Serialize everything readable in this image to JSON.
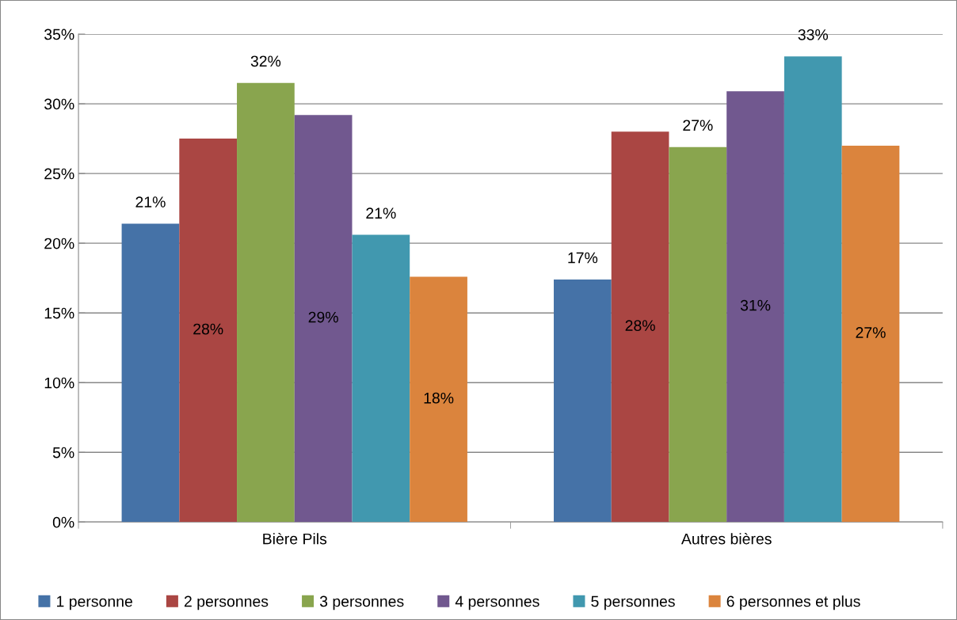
{
  "chart_data": {
    "type": "bar",
    "categories": [
      "Bière Pils",
      "Autres bières"
    ],
    "series": [
      {
        "name": "1 personne",
        "color": "#4572a7",
        "values": [
          21.4,
          17.4
        ],
        "value_labels": [
          "21%",
          "17%"
        ]
      },
      {
        "name": "2 personnes",
        "color": "#aa4643",
        "values": [
          27.5,
          28.0
        ],
        "value_labels": [
          "28%",
          "28%"
        ]
      },
      {
        "name": "3 personnes",
        "color": "#89a54e",
        "values": [
          31.5,
          26.9
        ],
        "value_labels": [
          "32%",
          "27%"
        ]
      },
      {
        "name": "4 personnes",
        "color": "#71588f",
        "values": [
          29.2,
          30.9
        ],
        "value_labels": [
          "29%",
          "31%"
        ]
      },
      {
        "name": "5 personnes",
        "color": "#4198af",
        "values": [
          20.6,
          33.4
        ],
        "value_labels": [
          "21%",
          "33%"
        ]
      },
      {
        "name": "6 personnes et plus",
        "color": "#db843d",
        "values": [
          17.6,
          27.0
        ],
        "value_labels": [
          "18%",
          "27%"
        ]
      }
    ],
    "ylim": [
      0,
      35
    ],
    "yticks": [
      {
        "value": 0,
        "label": "0%"
      },
      {
        "value": 5,
        "label": "5%"
      },
      {
        "value": 10,
        "label": "10%"
      },
      {
        "value": 15,
        "label": "15%"
      },
      {
        "value": 20,
        "label": "20%"
      },
      {
        "value": 25,
        "label": "25%"
      },
      {
        "value": 30,
        "label": "30%"
      },
      {
        "value": 35,
        "label": "35%"
      }
    ],
    "grid": "y",
    "legend": "bottom"
  }
}
